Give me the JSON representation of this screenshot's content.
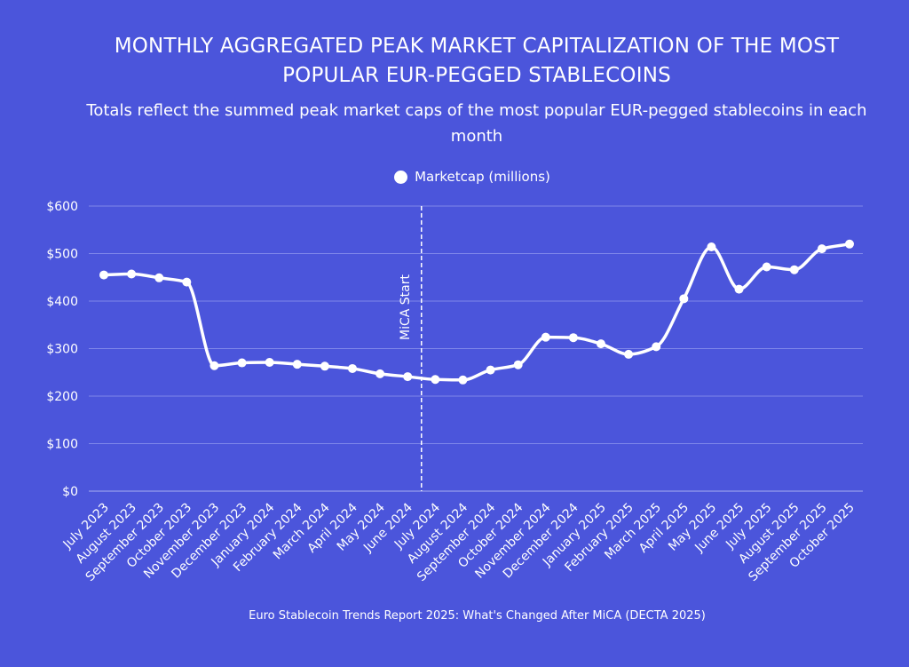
{
  "chart_data": {
    "type": "line",
    "title": "MONTHLY AGGREGATED PEAK MARKET CAPITALIZATION OF THE MOST POPULAR EUR-PEGGED STABLECOINS",
    "subtitle": "Totals reflect the summed peak market caps of the most popular EUR-pegged stablecoins in each month",
    "categories": [
      "July 2023",
      "August 2023",
      "September 2023",
      "October 2023",
      "November 2023",
      "December 2023",
      "January 2024",
      "February 2024",
      "March 2024",
      "April 2024",
      "May 2024",
      "June 2024",
      "July 2024",
      "August 2024",
      "September 2024",
      "October 2024",
      "November 2024",
      "December 2024",
      "January 2025",
      "February 2025",
      "March 2025",
      "April 2025",
      "May 2025",
      "June 2025",
      "July 2025",
      "August 2025",
      "September 2025",
      "October 2025"
    ],
    "series": [
      {
        "name": "Marketcap (millions)",
        "values": [
          455,
          457,
          449,
          440,
          264,
          270,
          271,
          267,
          263,
          258,
          247,
          241,
          235,
          234,
          255,
          266,
          324,
          323,
          310,
          288,
          304,
          405,
          514,
          425,
          472,
          466,
          510,
          520
        ]
      }
    ],
    "ylim": [
      0,
      600
    ],
    "yticks": [
      0,
      100,
      200,
      300,
      400,
      500,
      600
    ],
    "ytick_labels": [
      "$0",
      "$100",
      "$200",
      "$300",
      "$400",
      "$500",
      "$600"
    ],
    "xlabel": "",
    "ylabel": "",
    "grid": true,
    "legend_position": "top-center",
    "annotation": {
      "label": "MiCA Start",
      "between": [
        "June 2024",
        "July 2024"
      ]
    },
    "source": "Euro Stablecoin Trends Report 2025: What's Changed After MiCA (DECTA 2025)"
  },
  "colors": {
    "background": "#4b55db",
    "line": "#ffffff",
    "grid": "#7f87ea"
  }
}
